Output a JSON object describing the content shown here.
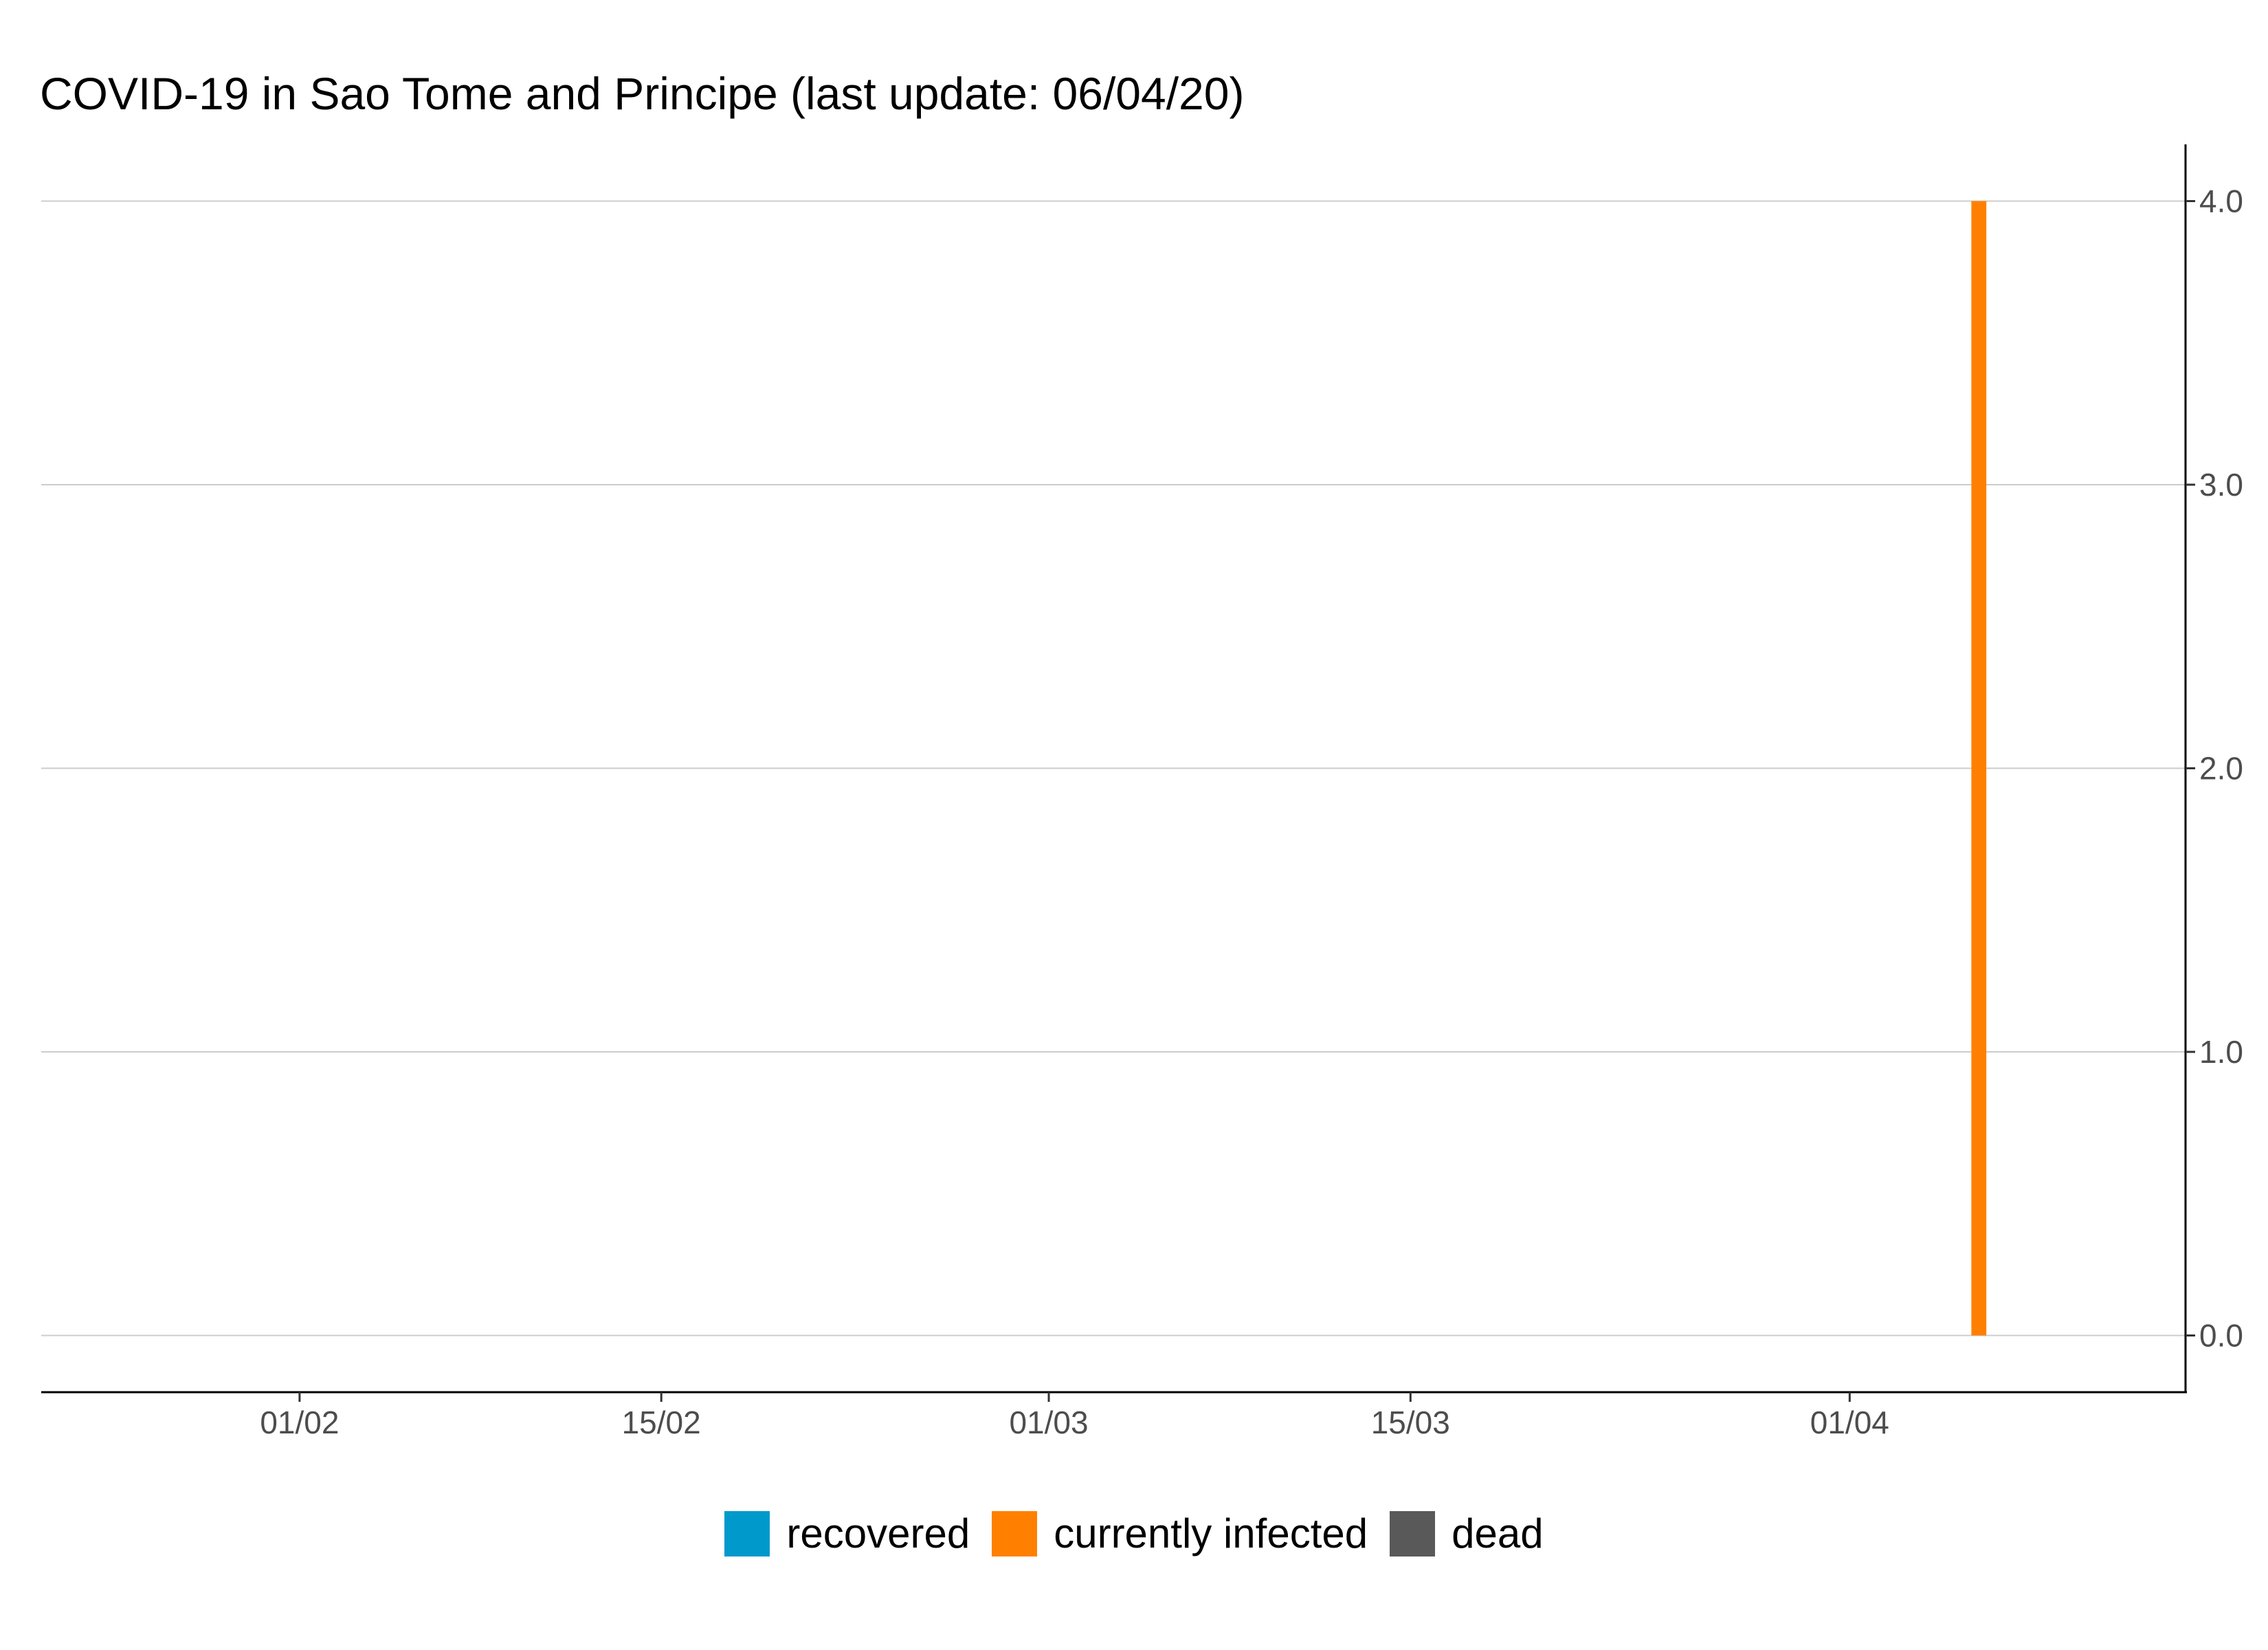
{
  "chart_data": {
    "type": "bar",
    "stacked": true,
    "title": "COVID-19 in Sao Tome and Principe (last update: 06/04/20)",
    "xlabel": "",
    "ylabel": "",
    "x_axis": {
      "type": "date",
      "range": [
        "2020-01-22",
        "2020-04-14"
      ],
      "ticks": [
        {
          "date": "2020-02-01",
          "label": "01/02"
        },
        {
          "date": "2020-02-15",
          "label": "15/02"
        },
        {
          "date": "2020-03-01",
          "label": "01/03"
        },
        {
          "date": "2020-03-15",
          "label": "15/03"
        },
        {
          "date": "2020-04-01",
          "label": "01/04"
        }
      ]
    },
    "y_axis": {
      "position": "right",
      "ylim": [
        -0.2,
        4.2
      ],
      "ticks": [
        {
          "value": 0,
          "label": "0.0"
        },
        {
          "value": 1,
          "label": "1.0"
        },
        {
          "value": 2,
          "label": "2.0"
        },
        {
          "value": 3,
          "label": "3.0"
        },
        {
          "value": 4,
          "label": "4.0"
        }
      ]
    },
    "grid": "horizontal",
    "legend_position": "bottom",
    "series": [
      {
        "name": "recovered",
        "color": "#0099CC",
        "points": []
      },
      {
        "name": "currently infected",
        "color": "#FF8000",
        "points": [
          {
            "x": "2020-04-06",
            "y": 4
          }
        ]
      },
      {
        "name": "dead",
        "color": "#595959",
        "points": []
      }
    ]
  }
}
